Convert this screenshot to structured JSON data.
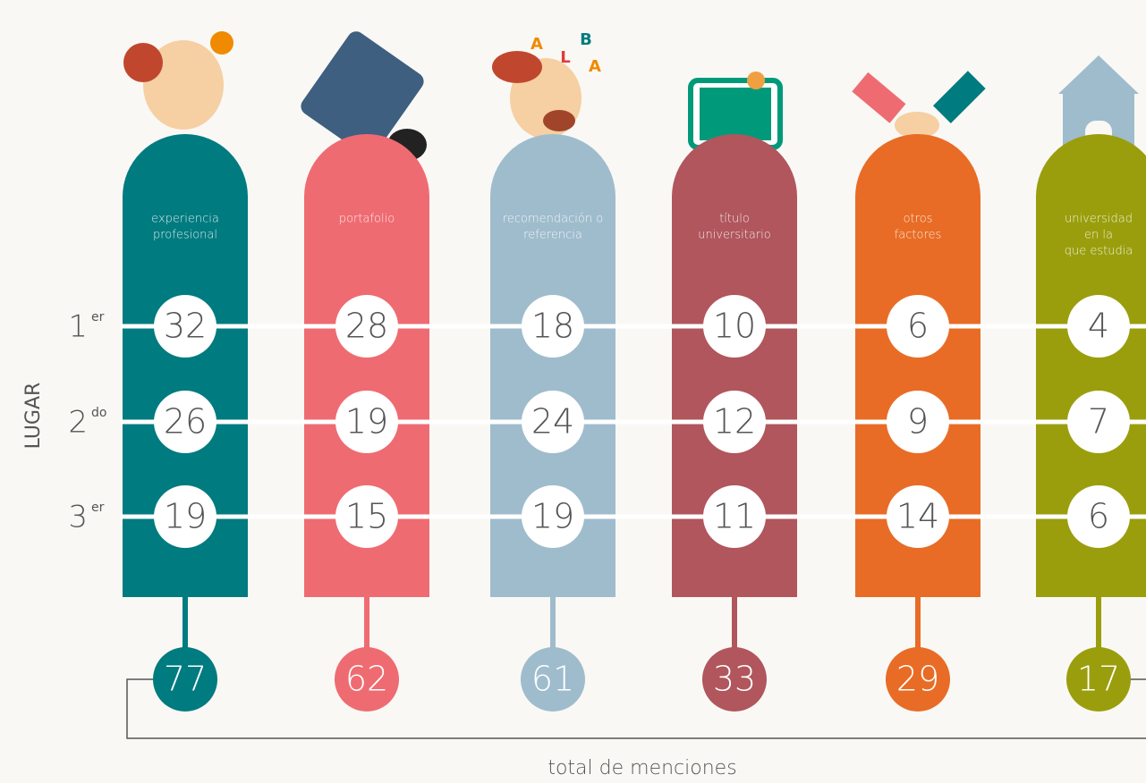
{
  "axis_label": "LUGAR",
  "footer_label": "total de menciones",
  "illustration_letters": [
    "A",
    "B",
    "L",
    "A"
  ],
  "ranks": [
    {
      "number": "1",
      "suffix": "er"
    },
    {
      "number": "2",
      "suffix": "do"
    },
    {
      "number": "3",
      "suffix": "er"
    }
  ],
  "columns": [
    {
      "label": [
        "experiencia",
        "profesional"
      ],
      "color": "#007b80",
      "values": [
        32,
        26,
        19
      ],
      "total": 77
    },
    {
      "label": [
        "portafolio"
      ],
      "color": "#ef6b72",
      "values": [
        28,
        19,
        15
      ],
      "total": 62
    },
    {
      "label": [
        "recomendación o",
        "referencia"
      ],
      "color": "#9fbccd",
      "values": [
        18,
        24,
        19
      ],
      "total": 61
    },
    {
      "label": [
        "título",
        "universitario"
      ],
      "color": "#b0565c",
      "values": [
        10,
        12,
        11
      ],
      "total": 33
    },
    {
      "label": [
        "otros",
        "factores"
      ],
      "color": "#e86c25",
      "values": [
        6,
        9,
        14
      ],
      "total": 29
    },
    {
      "label": [
        "universidad",
        "en la",
        "que estudia"
      ],
      "color": "#9a9e0c",
      "values": [
        4,
        7,
        6
      ],
      "total": 17
    }
  ]
}
